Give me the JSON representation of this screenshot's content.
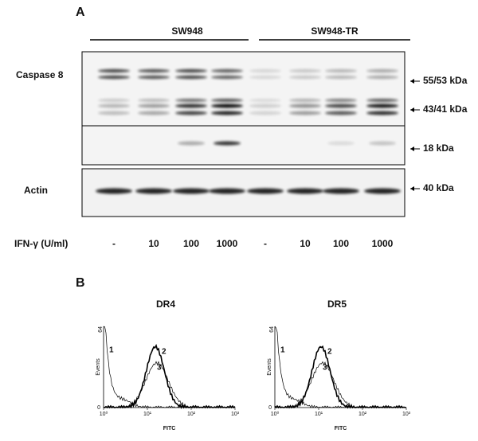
{
  "panel_a": {
    "label": "A",
    "groups": [
      "SW948",
      "SW948-TR"
    ],
    "rows": [
      "Caspase 8",
      "Actin"
    ],
    "markers": [
      "55/53 kDa",
      "43/41 kDa",
      "18 kDa",
      "40 kDa"
    ],
    "treatment_label": "IFN-γ (U/ml)",
    "lanes": [
      "-",
      "10",
      "100",
      "1000",
      "-",
      "10",
      "100",
      "1000"
    ]
  },
  "panel_b": {
    "label": "B",
    "plots": [
      {
        "title": "DR4",
        "y_axis": "Events",
        "y_labels": [
          "0",
          "64"
        ],
        "x_axis": "FITC",
        "x_labels": [
          "10⁰",
          "10¹",
          "10²",
          "10³"
        ],
        "curve_labels": [
          "1",
          "2",
          "3"
        ]
      },
      {
        "title": "DR5",
        "y_axis": "Events",
        "y_labels": [
          "0",
          "64"
        ],
        "x_axis": "FITC",
        "x_labels": [
          "10⁰",
          "10¹",
          "10²",
          "10³"
        ],
        "curve_labels": [
          "1",
          "2",
          "3"
        ]
      }
    ]
  }
}
